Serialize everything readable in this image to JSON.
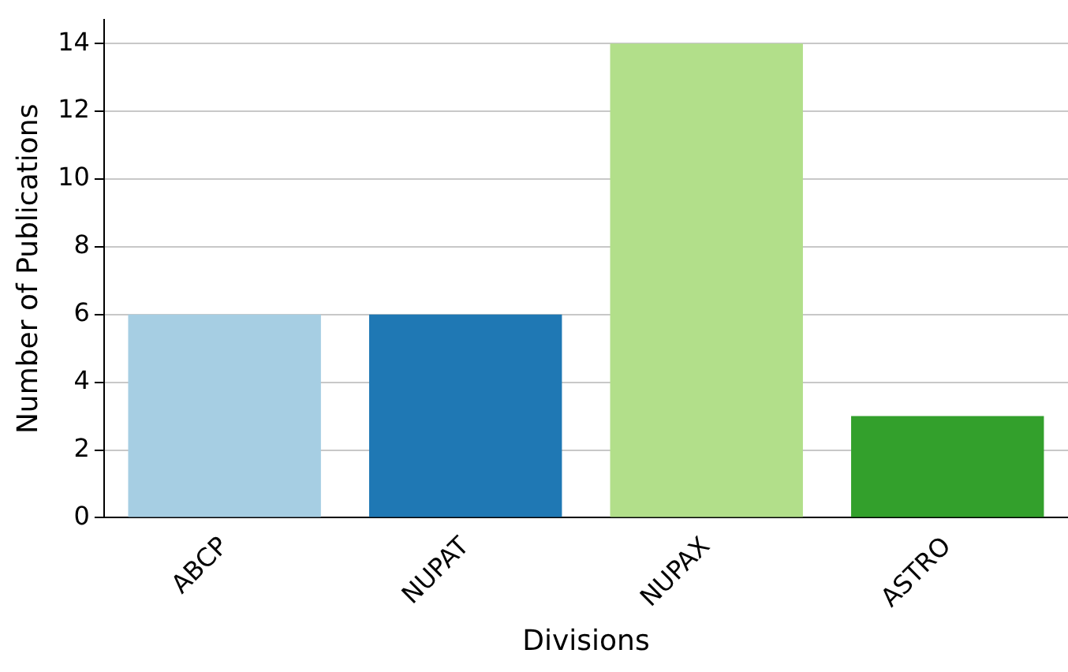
{
  "chart_data": {
    "type": "bar",
    "xlabel": "Divisions",
    "ylabel": "Number of Publications",
    "categories": [
      "ABCP",
      "NUPAT",
      "NUPAX",
      "ASTRO"
    ],
    "values": [
      6,
      6,
      14,
      3
    ],
    "colors": [
      "#a6cee3",
      "#1f78b4",
      "#b2df8a",
      "#33a02c"
    ],
    "ylim": [
      0,
      14.7
    ],
    "yticks": [
      0,
      2,
      4,
      6,
      8,
      10,
      12,
      14
    ],
    "grid": "y"
  }
}
